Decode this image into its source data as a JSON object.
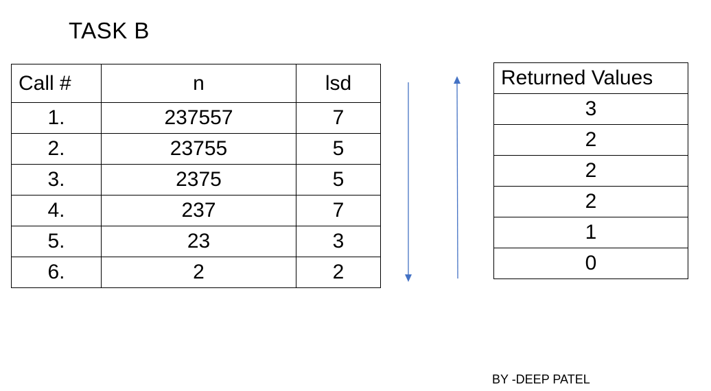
{
  "title": "TASK B",
  "calls_table": {
    "headers": [
      "Call #",
      "n",
      "lsd"
    ],
    "rows": [
      [
        "1.",
        "237557",
        "7"
      ],
      [
        "2.",
        "23755",
        "5"
      ],
      [
        "3.",
        "2375",
        "5"
      ],
      [
        "4.",
        "237",
        "7"
      ],
      [
        "5.",
        "23",
        "3"
      ],
      [
        "6.",
        "2",
        "2"
      ]
    ]
  },
  "returned_table": {
    "header": "Returned Values",
    "values": [
      "3",
      "2",
      "2",
      "2",
      "1",
      "0"
    ]
  },
  "arrow_color": "#4472C4",
  "author": "BY -DEEP PATEL"
}
